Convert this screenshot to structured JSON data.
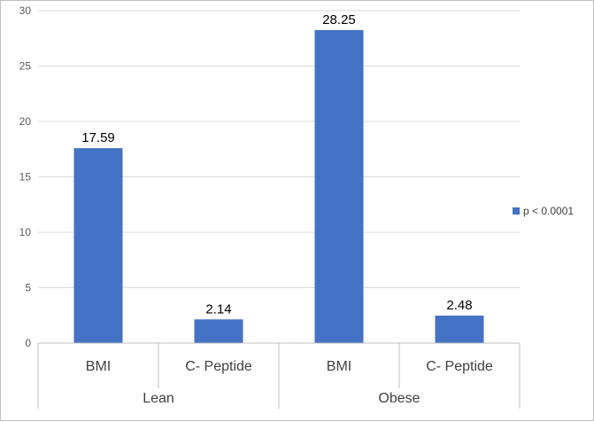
{
  "chart_data": {
    "type": "bar",
    "title": "",
    "xlabel": "",
    "ylabel": "",
    "ylim": [
      0,
      30
    ],
    "yticks": [
      0,
      5,
      10,
      15,
      20,
      25,
      30
    ],
    "grid": true,
    "groups": [
      {
        "label": "Lean",
        "categories": [
          "BMI",
          "C- Peptide"
        ]
      },
      {
        "label": "Obese",
        "categories": [
          "BMI",
          "C- Peptide"
        ]
      }
    ],
    "categories": [
      "BMI",
      "C- Peptide",
      "BMI",
      "C- Peptide"
    ],
    "series": [
      {
        "name": "p < 0.0001",
        "values": [
          17.59,
          2.14,
          28.25,
          2.48
        ],
        "color": "#4472c4"
      }
    ],
    "value_labels": [
      "17.59",
      "2.14",
      "28.25",
      "2.48"
    ],
    "legend": {
      "position": "right",
      "entries": [
        "p < 0.0001"
      ]
    }
  }
}
